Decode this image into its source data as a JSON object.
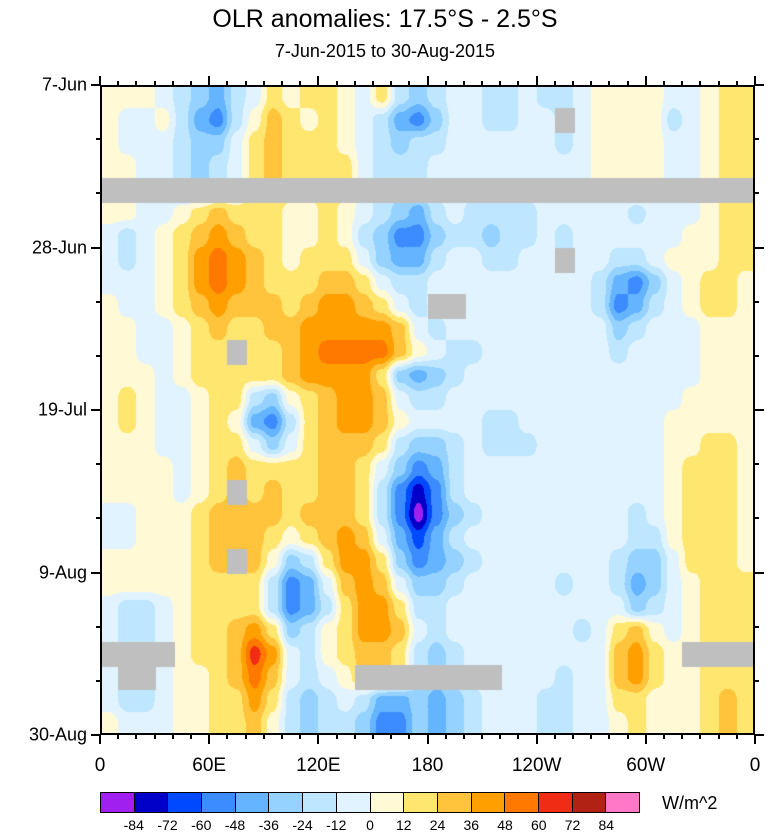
{
  "chart_data": {
    "type": "heatmap",
    "title": "OLR anomalies: 17.5°S - 2.5°S",
    "subtitle": "7-Jun-2015 to 30-Aug-2015",
    "x_axis": {
      "tick_labels": [
        "0",
        "60E",
        "120E",
        "180",
        "120W",
        "60W",
        "0"
      ],
      "range_deg_east": [
        0,
        360
      ],
      "grid_step_deg": 10
    },
    "y_axis": {
      "tick_labels": [
        "7-Jun",
        "28-Jun",
        "19-Jul",
        "9-Aug",
        "30-Aug"
      ],
      "start_date": "7-Jun-2015",
      "end_date": "30-Aug-2015",
      "grid_step_days": 3,
      "orientation": "time increases downward"
    },
    "legend": {
      "unit": "W/m^2",
      "position": "bottom"
    },
    "levels": [
      -84,
      -72,
      -60,
      -48,
      -36,
      -24,
      -12,
      0,
      12,
      24,
      36,
      48,
      60,
      72,
      84
    ],
    "colors": [
      "#A020F0",
      "#0000C8",
      "#0049FF",
      "#3C8CFF",
      "#64B4FF",
      "#96D2FF",
      "#BEE6FF",
      "#E1F3FF",
      "#FFF9D6",
      "#FFE66E",
      "#FFC33C",
      "#FFA000",
      "#FF7800",
      "#F02C14",
      "#B22214",
      "#FF78C8"
    ],
    "missing_color": "#BFBFBF",
    "grid_note": "rows = 3-day steps from 7-Jun-2015 (top) to 30-Aug-2015 (bottom); cols = 10-degree longitude steps eastward from 0; values in W/m^2; null = missing data (gray)",
    "grid": [
      [
        6,
        6,
        6,
        -6,
        -18,
        -30,
        -42,
        -18,
        -6,
        18,
        6,
        18,
        18,
        6,
        -6,
        18,
        -18,
        -30,
        -18,
        -6,
        -6,
        -18,
        -18,
        -6,
        -18,
        -18,
        -6,
        6,
        6,
        6,
        6,
        -6,
        -6,
        6,
        18,
        18
      ],
      [
        6,
        -6,
        -6,
        6,
        -18,
        -42,
        -54,
        -18,
        6,
        30,
        18,
        6,
        18,
        6,
        -6,
        -18,
        -42,
        -54,
        -30,
        -6,
        -6,
        -18,
        -18,
        -6,
        -6,
        null,
        -6,
        6,
        6,
        6,
        6,
        -18,
        -6,
        6,
        18,
        18
      ],
      [
        6,
        -6,
        -6,
        -6,
        -18,
        -30,
        -30,
        -6,
        18,
        30,
        18,
        18,
        18,
        6,
        -6,
        -18,
        -30,
        -18,
        -18,
        -6,
        -6,
        -6,
        -6,
        -6,
        -6,
        -18,
        -6,
        6,
        6,
        6,
        6,
        -6,
        -6,
        6,
        18,
        18
      ],
      [
        6,
        6,
        -6,
        -6,
        -18,
        -30,
        -18,
        -6,
        18,
        30,
        18,
        18,
        18,
        18,
        -6,
        -18,
        -18,
        -18,
        -6,
        -6,
        -6,
        -6,
        -6,
        -6,
        -6,
        -6,
        -6,
        6,
        6,
        6,
        6,
        -6,
        -6,
        6,
        18,
        18
      ],
      [
        null,
        null,
        null,
        null,
        null,
        null,
        null,
        null,
        null,
        null,
        null,
        null,
        null,
        null,
        null,
        null,
        null,
        null,
        null,
        null,
        null,
        null,
        null,
        null,
        null,
        null,
        null,
        null,
        null,
        null,
        null,
        null,
        null,
        null,
        null,
        null
      ],
      [
        6,
        6,
        -6,
        -6,
        6,
        18,
        30,
        18,
        18,
        18,
        6,
        6,
        18,
        6,
        -6,
        -18,
        -30,
        -42,
        -18,
        -6,
        -18,
        -18,
        -18,
        -18,
        -6,
        -6,
        -6,
        -6,
        -6,
        -18,
        -6,
        -6,
        -6,
        6,
        18,
        18
      ],
      [
        -6,
        -18,
        -6,
        6,
        18,
        30,
        42,
        30,
        18,
        18,
        6,
        6,
        18,
        6,
        -18,
        -30,
        -54,
        -54,
        -30,
        -18,
        -18,
        -30,
        -18,
        -18,
        -6,
        -18,
        -6,
        -6,
        -6,
        -6,
        -6,
        -6,
        6,
        6,
        18,
        18
      ],
      [
        -6,
        -18,
        -6,
        6,
        18,
        42,
        54,
        42,
        30,
        18,
        6,
        18,
        18,
        18,
        -6,
        -30,
        -42,
        -42,
        -18,
        -6,
        -6,
        -18,
        -18,
        -6,
        -6,
        null,
        -6,
        -6,
        -18,
        -18,
        -6,
        6,
        6,
        6,
        18,
        18
      ],
      [
        -6,
        -6,
        -6,
        6,
        18,
        42,
        54,
        42,
        30,
        18,
        18,
        18,
        30,
        30,
        18,
        -6,
        -18,
        -18,
        -6,
        -6,
        -6,
        -6,
        -6,
        -6,
        -6,
        -6,
        -6,
        -18,
        -42,
        -54,
        -30,
        -6,
        6,
        18,
        18,
        6
      ],
      [
        6,
        -6,
        -6,
        6,
        18,
        30,
        42,
        30,
        30,
        30,
        18,
        30,
        42,
        42,
        30,
        18,
        -6,
        -18,
        null,
        null,
        -6,
        -6,
        -6,
        -6,
        -6,
        -6,
        -6,
        -18,
        -54,
        -42,
        -18,
        -6,
        6,
        18,
        18,
        6
      ],
      [
        6,
        6,
        -6,
        -6,
        6,
        18,
        30,
        18,
        18,
        30,
        30,
        42,
        42,
        42,
        42,
        42,
        30,
        -6,
        -18,
        -6,
        -6,
        -6,
        -6,
        -6,
        -6,
        -6,
        -6,
        -6,
        -30,
        -18,
        -6,
        -6,
        -6,
        6,
        6,
        6
      ],
      [
        6,
        6,
        -6,
        -6,
        6,
        18,
        18,
        null,
        18,
        18,
        30,
        42,
        54,
        54,
        54,
        54,
        30,
        6,
        -6,
        -18,
        -18,
        -6,
        -6,
        -6,
        -6,
        -6,
        -6,
        -6,
        -18,
        -6,
        -6,
        -6,
        -6,
        6,
        6,
        6
      ],
      [
        6,
        6,
        6,
        -6,
        6,
        18,
        18,
        18,
        18,
        18,
        30,
        42,
        42,
        42,
        42,
        18,
        -30,
        -42,
        -30,
        -18,
        -6,
        -6,
        -6,
        -6,
        -6,
        -6,
        -6,
        -6,
        -6,
        -6,
        -6,
        -6,
        -6,
        6,
        6,
        6
      ],
      [
        6,
        18,
        6,
        -6,
        -6,
        6,
        18,
        18,
        -18,
        -30,
        6,
        18,
        30,
        42,
        42,
        30,
        -6,
        -18,
        -18,
        -6,
        -6,
        -6,
        -6,
        -6,
        -6,
        -6,
        -6,
        -6,
        -6,
        -6,
        -6,
        -6,
        6,
        6,
        6,
        6
      ],
      [
        6,
        18,
        6,
        -6,
        -6,
        6,
        18,
        6,
        -42,
        -54,
        -18,
        18,
        30,
        42,
        42,
        30,
        6,
        -6,
        -6,
        -6,
        -6,
        -18,
        -18,
        -6,
        -6,
        -6,
        -6,
        -6,
        -6,
        -6,
        -6,
        6,
        6,
        6,
        6,
        6
      ],
      [
        6,
        6,
        6,
        -6,
        -6,
        6,
        18,
        18,
        -6,
        -30,
        -6,
        18,
        30,
        30,
        30,
        18,
        -18,
        -30,
        -30,
        -18,
        -6,
        -18,
        -18,
        -18,
        -6,
        -6,
        -6,
        -6,
        -6,
        -6,
        -6,
        6,
        6,
        18,
        18,
        6
      ],
      [
        6,
        6,
        6,
        6,
        -6,
        6,
        18,
        30,
        18,
        18,
        18,
        18,
        30,
        30,
        18,
        -6,
        -30,
        -54,
        -42,
        -18,
        -6,
        -6,
        -6,
        -6,
        -6,
        -6,
        -6,
        -6,
        -6,
        -6,
        -6,
        6,
        18,
        18,
        18,
        6
      ],
      [
        6,
        6,
        6,
        6,
        -6,
        6,
        18,
        null,
        18,
        30,
        18,
        18,
        30,
        30,
        18,
        -18,
        -54,
        -78,
        -54,
        -18,
        -6,
        -6,
        -6,
        -6,
        -6,
        -6,
        -6,
        -6,
        -6,
        -6,
        -6,
        6,
        18,
        18,
        18,
        6
      ],
      [
        -6,
        -6,
        6,
        6,
        6,
        18,
        30,
        30,
        30,
        30,
        18,
        30,
        30,
        30,
        18,
        -18,
        -54,
        -90,
        -54,
        -30,
        -18,
        -6,
        -6,
        -6,
        -6,
        -6,
        -6,
        -6,
        -6,
        -18,
        -6,
        6,
        18,
        18,
        18,
        6
      ],
      [
        -6,
        -6,
        6,
        6,
        6,
        18,
        30,
        30,
        30,
        18,
        6,
        18,
        30,
        42,
        30,
        -6,
        -42,
        -66,
        -42,
        -18,
        -6,
        -6,
        -6,
        -6,
        -6,
        -6,
        -6,
        -6,
        -6,
        -18,
        -18,
        6,
        18,
        18,
        18,
        6
      ],
      [
        6,
        6,
        6,
        6,
        6,
        18,
        30,
        null,
        30,
        6,
        -30,
        -18,
        18,
        42,
        42,
        18,
        -30,
        -54,
        -42,
        -30,
        -18,
        -6,
        -6,
        -6,
        -6,
        -6,
        -6,
        -6,
        -18,
        -30,
        -30,
        -6,
        18,
        18,
        18,
        6
      ],
      [
        6,
        6,
        6,
        6,
        6,
        18,
        18,
        18,
        18,
        -18,
        -54,
        -42,
        -6,
        30,
        42,
        30,
        -6,
        -30,
        -30,
        -18,
        -6,
        -6,
        -6,
        -6,
        -6,
        -18,
        -6,
        -6,
        -18,
        -42,
        -30,
        -6,
        6,
        18,
        18,
        18
      ],
      [
        -6,
        -18,
        -18,
        -6,
        6,
        18,
        18,
        18,
        18,
        -18,
        -54,
        -42,
        -18,
        18,
        42,
        42,
        18,
        -18,
        -18,
        -6,
        -6,
        -6,
        -6,
        -6,
        -6,
        -6,
        -6,
        -6,
        -6,
        -30,
        -18,
        -6,
        6,
        18,
        18,
        18
      ],
      [
        -6,
        -18,
        -18,
        -6,
        6,
        18,
        18,
        30,
        42,
        18,
        -30,
        -18,
        6,
        18,
        42,
        42,
        30,
        -6,
        -18,
        -6,
        -6,
        -6,
        -6,
        -6,
        -6,
        -6,
        -18,
        -6,
        18,
        30,
        6,
        -6,
        6,
        18,
        18,
        18
      ],
      [
        null,
        null,
        null,
        null,
        6,
        18,
        18,
        30,
        66,
        42,
        -6,
        -18,
        6,
        18,
        30,
        30,
        18,
        -18,
        -30,
        -18,
        -6,
        -6,
        -6,
        -6,
        -6,
        -6,
        -6,
        -6,
        30,
        42,
        18,
        6,
        null,
        null,
        null,
        null
      ],
      [
        -6,
        null,
        null,
        -6,
        6,
        6,
        18,
        30,
        54,
        30,
        -6,
        -18,
        -6,
        6,
        null,
        null,
        null,
        null,
        null,
        null,
        null,
        null,
        -6,
        -6,
        -6,
        -18,
        -6,
        -6,
        30,
        42,
        18,
        6,
        6,
        18,
        18,
        18
      ],
      [
        -6,
        -18,
        -18,
        -6,
        6,
        6,
        18,
        18,
        42,
        18,
        -18,
        -30,
        -18,
        -6,
        -18,
        -42,
        -42,
        -30,
        -42,
        -30,
        -18,
        -6,
        -6,
        -6,
        -18,
        -18,
        -6,
        -6,
        18,
        18,
        6,
        6,
        6,
        18,
        30,
        18
      ],
      [
        6,
        -6,
        -6,
        -6,
        6,
        6,
        18,
        18,
        30,
        6,
        -18,
        -30,
        -18,
        -18,
        -30,
        -54,
        -54,
        -30,
        -42,
        -30,
        -18,
        -6,
        -6,
        -6,
        -18,
        -18,
        -6,
        -6,
        6,
        18,
        6,
        6,
        6,
        18,
        30,
        18
      ]
    ]
  }
}
